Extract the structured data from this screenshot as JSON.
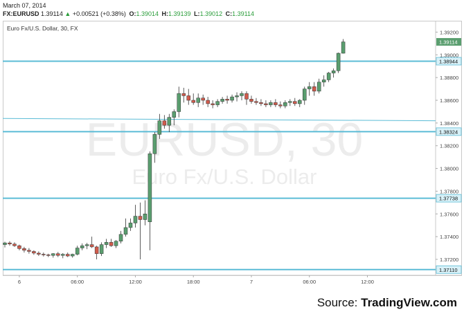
{
  "header": {
    "date": "March 07, 2014",
    "symbol": "FX:EURUSD",
    "last": "1.39114",
    "arrow": "▲",
    "change": "+0.00521 (+0.38%)",
    "ohlc": [
      {
        "label": "O:",
        "value": "1.39014"
      },
      {
        "label": "H:",
        "value": "1.39139"
      },
      {
        "label": "L:",
        "value": "1.39012"
      },
      {
        "label": "C:",
        "value": "1.39114"
      }
    ]
  },
  "source": {
    "prefix": "Source: ",
    "brand": "TradingView.com"
  },
  "chart_data": {
    "type": "candlestick",
    "title": "Euro Fx/U.S. Dollar, 30, FX",
    "watermark_symbol": "EURUSD, 30",
    "watermark_name": "Euro Fx/U.S. Dollar",
    "ylim": [
      1.3706,
      1.393
    ],
    "y_ticks": [
      "1.39200",
      "1.39000",
      "1.38800",
      "1.38600",
      "1.38400",
      "1.38200",
      "1.38000",
      "1.37800",
      "1.37600",
      "1.37400",
      "1.37200"
    ],
    "x_ticks": [
      {
        "label": "6",
        "index": 3
      },
      {
        "label": "06:00",
        "index": 15
      },
      {
        "label": "12:00",
        "index": 27
      },
      {
        "label": "18:00",
        "index": 39
      },
      {
        "label": "7",
        "index": 51
      },
      {
        "label": "06:00",
        "index": 63
      },
      {
        "label": "12:00",
        "index": 75
      }
    ],
    "horizontal_lines": [
      {
        "value": 1.38944,
        "label": "1.38944"
      },
      {
        "value": 1.38324,
        "label": "1.38324"
      },
      {
        "value": 1.37738,
        "label": "1.37738"
      },
      {
        "value": 1.3711,
        "label": "1.37110"
      }
    ],
    "trend_line": [
      1.3844,
      1.3842
    ],
    "last_price": {
      "value": 1.39114,
      "label": "1.39114"
    },
    "colors": {
      "up": "#5a9e6f",
      "down": "#d15b4c",
      "level": "#5bbcd6"
    },
    "candles": [
      [
        1.3733,
        1.37355,
        1.37305,
        1.37345
      ],
      [
        1.37345,
        1.3736,
        1.3732,
        1.37335
      ],
      [
        1.37335,
        1.3735,
        1.3731,
        1.3732
      ],
      [
        1.3732,
        1.3733,
        1.3728,
        1.37295
      ],
      [
        1.37295,
        1.3731,
        1.3726,
        1.3728
      ],
      [
        1.3728,
        1.373,
        1.3725,
        1.3727
      ],
      [
        1.3727,
        1.3728,
        1.3724,
        1.37255
      ],
      [
        1.37255,
        1.3727,
        1.3723,
        1.37245
      ],
      [
        1.37245,
        1.3726,
        1.37225,
        1.3724
      ],
      [
        1.3724,
        1.3725,
        1.3722,
        1.37235
      ],
      [
        1.37235,
        1.37255,
        1.37215,
        1.3725
      ],
      [
        1.3725,
        1.37265,
        1.3722,
        1.37235
      ],
      [
        1.37235,
        1.37255,
        1.3721,
        1.37245
      ],
      [
        1.37245,
        1.3726,
        1.3722,
        1.3723
      ],
      [
        1.3723,
        1.3725,
        1.37215,
        1.37245
      ],
      [
        1.37245,
        1.3732,
        1.37235,
        1.373
      ],
      [
        1.373,
        1.3734,
        1.3728,
        1.3732
      ],
      [
        1.3732,
        1.37345,
        1.3729,
        1.3733
      ],
      [
        1.3733,
        1.374,
        1.373,
        1.3731
      ],
      [
        1.3731,
        1.3732,
        1.372,
        1.3725
      ],
      [
        1.3725,
        1.3735,
        1.3723,
        1.3733
      ],
      [
        1.3733,
        1.3738,
        1.373,
        1.3735
      ],
      [
        1.3735,
        1.3738,
        1.3731,
        1.3732
      ],
      [
        1.3732,
        1.3737,
        1.373,
        1.3736
      ],
      [
        1.3736,
        1.3745,
        1.3734,
        1.3742
      ],
      [
        1.3742,
        1.3756,
        1.374,
        1.3748
      ],
      [
        1.3748,
        1.3756,
        1.3745,
        1.3752
      ],
      [
        1.3752,
        1.3768,
        1.3748,
        1.3758
      ],
      [
        1.3758,
        1.377,
        1.372,
        1.3755
      ],
      [
        1.3755,
        1.3772,
        1.375,
        1.376
      ],
      [
        1.3753,
        1.3815,
        1.3728,
        1.3813
      ],
      [
        1.3813,
        1.3832,
        1.3805,
        1.383
      ],
      [
        1.383,
        1.3848,
        1.3826,
        1.3842
      ],
      [
        1.3842,
        1.3847,
        1.3835,
        1.3838
      ],
      [
        1.3838,
        1.3848,
        1.3832,
        1.3845
      ],
      [
        1.3845,
        1.3852,
        1.3838,
        1.385
      ],
      [
        1.385,
        1.3872,
        1.3845,
        1.3866
      ],
      [
        1.3866,
        1.3871,
        1.3858,
        1.3864
      ],
      [
        1.3864,
        1.387,
        1.3856,
        1.386
      ],
      [
        1.386,
        1.3866,
        1.3856,
        1.3858
      ],
      [
        1.3858,
        1.3866,
        1.3854,
        1.3862
      ],
      [
        1.3862,
        1.3865,
        1.3856,
        1.386
      ],
      [
        1.386,
        1.3863,
        1.3854,
        1.3857
      ],
      [
        1.3857,
        1.386,
        1.3853,
        1.3856
      ],
      [
        1.3856,
        1.3861,
        1.3854,
        1.3859
      ],
      [
        1.3859,
        1.3863,
        1.3857,
        1.3861
      ],
      [
        1.3861,
        1.3864,
        1.3857,
        1.386
      ],
      [
        1.386,
        1.3865,
        1.3858,
        1.3863
      ],
      [
        1.3863,
        1.3867,
        1.3859,
        1.3864
      ],
      [
        1.3864,
        1.3868,
        1.386,
        1.3866
      ],
      [
        1.3866,
        1.3868,
        1.3856,
        1.3861
      ],
      [
        1.3861,
        1.3864,
        1.3857,
        1.3859
      ],
      [
        1.3859,
        1.3862,
        1.3856,
        1.3858
      ],
      [
        1.3858,
        1.3861,
        1.3855,
        1.3857
      ],
      [
        1.3857,
        1.386,
        1.3854,
        1.3856
      ],
      [
        1.3856,
        1.386,
        1.3854,
        1.3858
      ],
      [
        1.3858,
        1.3861,
        1.3854,
        1.3856
      ],
      [
        1.3856,
        1.3859,
        1.3853,
        1.3855
      ],
      [
        1.3855,
        1.386,
        1.3853,
        1.3858
      ],
      [
        1.3858,
        1.3861,
        1.3855,
        1.3859
      ],
      [
        1.3859,
        1.3862,
        1.3855,
        1.3857
      ],
      [
        1.3857,
        1.3861,
        1.3854,
        1.386
      ],
      [
        1.386,
        1.3872,
        1.3856,
        1.387
      ],
      [
        1.387,
        1.3876,
        1.3864,
        1.3872
      ],
      [
        1.3872,
        1.3876,
        1.3864,
        1.3868
      ],
      [
        1.3868,
        1.3879,
        1.3866,
        1.3876
      ],
      [
        1.3876,
        1.3882,
        1.3872,
        1.3878
      ],
      [
        1.3878,
        1.3885,
        1.3876,
        1.3884
      ],
      [
        1.3884,
        1.3888,
        1.388,
        1.3886
      ],
      [
        1.3886,
        1.3902,
        1.3884,
        1.39014
      ],
      [
        1.39014,
        1.39139,
        1.39012,
        1.39114
      ]
    ]
  }
}
